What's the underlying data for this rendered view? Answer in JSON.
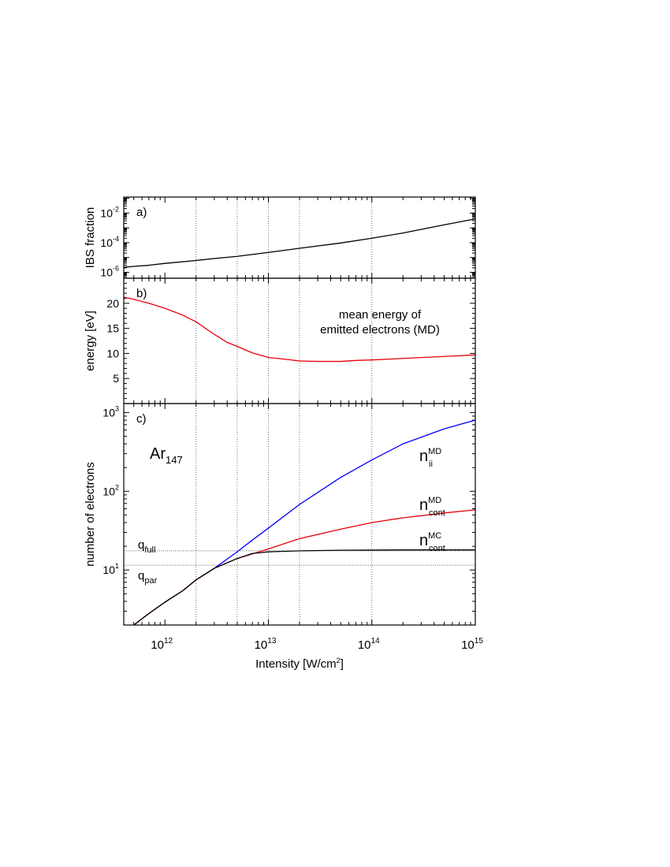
{
  "figure": {
    "xlabel": "Intensity [W/cm",
    "xlabel_sup": "2",
    "xlabel_end": "]",
    "x_ticks": [
      {
        "value": 1000000000000.0,
        "base": "10",
        "exp": "12"
      },
      {
        "value": 10000000000000.0,
        "base": "10",
        "exp": "13"
      },
      {
        "value": 100000000000000.0,
        "base": "10",
        "exp": "14"
      },
      {
        "value": 1000000000000000.0,
        "base": "10",
        "exp": "15"
      }
    ]
  },
  "chart_data": [
    {
      "panel": "a)",
      "type": "line",
      "xscale": "log",
      "yscale": "log",
      "xlim": [
        400000000000.0,
        1000000000000000.0
      ],
      "ylim": [
        4e-07,
        0.12
      ],
      "ylabel": "IBS fraction",
      "y_ticks": [
        {
          "value": 1e-06,
          "base": "10",
          "exp": "-6"
        },
        {
          "value": 0.0001,
          "base": "10",
          "exp": "-4"
        },
        {
          "value": 0.01,
          "base": "10",
          "exp": "-2"
        }
      ],
      "grid_x": [
        2000000000000.0,
        5000000000000.0,
        10000000000000.0,
        20000000000000.0,
        100000000000000.0
      ],
      "series": [
        {
          "color": "#000000",
          "x": [
            400000000000.0,
            500000000000.0,
            700000000000.0,
            1000000000000.0,
            2000000000000.0,
            3000000000000.0,
            5000000000000.0,
            10000000000000.0,
            20000000000000.0,
            50000000000000.0,
            100000000000000.0,
            200000000000000.0,
            500000000000000.0,
            1000000000000000.0
          ],
          "y": [
            2.2e-06,
            2.5e-06,
            3e-06,
            4e-06,
            6.3e-06,
            8.5e-06,
            1.2e-05,
            2.2e-05,
            4.2e-05,
            9.5e-05,
            0.0002,
            0.00045,
            0.0016,
            0.004
          ]
        }
      ]
    },
    {
      "panel": "b)",
      "type": "line",
      "xscale": "log",
      "yscale": "linear",
      "xlim": [
        400000000000.0,
        1000000000000000.0
      ],
      "ylim": [
        0,
        25
      ],
      "ylabel": "energy [eV]",
      "y_ticks": [
        {
          "value": 5,
          "label": "5"
        },
        {
          "value": 10,
          "label": "10"
        },
        {
          "value": 15,
          "label": "15"
        },
        {
          "value": 20,
          "label": "20"
        }
      ],
      "grid_x": [
        2000000000000.0,
        5000000000000.0,
        10000000000000.0,
        20000000000000.0,
        100000000000000.0
      ],
      "annotation": [
        "mean energy of",
        "emitted electrons (MD)"
      ],
      "series": [
        {
          "color": "#e8000b",
          "x": [
            400000000000.0,
            500000000000.0,
            700000000000.0,
            1000000000000.0,
            1500000000000.0,
            2000000000000.0,
            3000000000000.0,
            4000000000000.0,
            5000000000000.0,
            7000000000000.0,
            10000000000000.0,
            15000000000000.0,
            20000000000000.0,
            30000000000000.0,
            50000000000000.0,
            70000000000000.0,
            100000000000000.0,
            200000000000000.0,
            500000000000000.0,
            1000000000000000.0
          ],
          "y": [
            21.2,
            20.8,
            20.0,
            19.0,
            17.6,
            16.3,
            13.8,
            12.2,
            11.4,
            10.1,
            9.2,
            8.8,
            8.5,
            8.4,
            8.4,
            8.6,
            8.7,
            9.0,
            9.4,
            9.7
          ]
        }
      ]
    },
    {
      "panel": "c)",
      "type": "line",
      "xscale": "log",
      "yscale": "log",
      "xlim": [
        400000000000.0,
        1000000000000000.0
      ],
      "ylim": [
        2,
        1300
      ],
      "ylabel": "number of electrons",
      "y_ticks": [
        {
          "value": 10,
          "base": "10",
          "exp": "1"
        },
        {
          "value": 100,
          "base": "10",
          "exp": "2"
        },
        {
          "value": 1000,
          "base": "10",
          "exp": "3"
        }
      ],
      "grid_x": [
        2000000000000.0,
        5000000000000.0,
        10000000000000.0,
        20000000000000.0,
        100000000000000.0
      ],
      "cluster_label": {
        "base": "Ar",
        "sub": "147"
      },
      "reference_lines": [
        {
          "y": 17.5,
          "label_base": "q",
          "label_sub": "full"
        },
        {
          "y": 11.5,
          "label_base": "q",
          "label_sub": "par"
        }
      ],
      "series": [
        {
          "name_base": "n",
          "name_sub": "ii",
          "name_sup": "MD",
          "color": "#0000ff",
          "x": [
            500000000000.0,
            700000000000.0,
            1000000000000.0,
            1500000000000.0,
            2000000000000.0,
            3000000000000.0,
            5000000000000.0,
            7000000000000.0,
            10000000000000.0,
            20000000000000.0,
            50000000000000.0,
            100000000000000.0,
            200000000000000.0,
            500000000000000.0,
            1000000000000000.0
          ],
          "y": [
            2.0,
            2.8,
            3.9,
            5.5,
            7.5,
            10.5,
            17.0,
            24.0,
            34.0,
            68.0,
            150.0,
            250.0,
            400.0,
            620.0,
            800.0
          ]
        },
        {
          "name_base": "n",
          "name_sub": "cont",
          "name_sup": "MD",
          "color": "#e8000b",
          "x": [
            500000000000.0,
            700000000000.0,
            1000000000000.0,
            1500000000000.0,
            2000000000000.0,
            3000000000000.0,
            5000000000000.0,
            7000000000000.0,
            10000000000000.0,
            20000000000000.0,
            50000000000000.0,
            100000000000000.0,
            200000000000000.0,
            500000000000000.0,
            1000000000000000.0
          ],
          "y": [
            2.0,
            2.8,
            3.9,
            5.5,
            7.5,
            10.5,
            14.0,
            16.0,
            18.5,
            25.0,
            33.0,
            40.0,
            46.0,
            53.0,
            58.0
          ]
        },
        {
          "name_base": "n",
          "name_sub": "cont",
          "name_sup": "MC",
          "color": "#000000",
          "x": [
            500000000000.0,
            700000000000.0,
            1000000000000.0,
            1500000000000.0,
            2000000000000.0,
            3000000000000.0,
            5000000000000.0,
            7000000000000.0,
            10000000000000.0,
            20000000000000.0,
            50000000000000.0,
            100000000000000.0,
            200000000000000.0,
            500000000000000.0,
            1000000000000000.0
          ],
          "y": [
            2.0,
            2.8,
            3.9,
            5.5,
            7.5,
            10.5,
            14.0,
            16.2,
            17.0,
            17.5,
            17.8,
            17.9,
            18.0,
            18.0,
            18.0
          ]
        }
      ]
    }
  ]
}
